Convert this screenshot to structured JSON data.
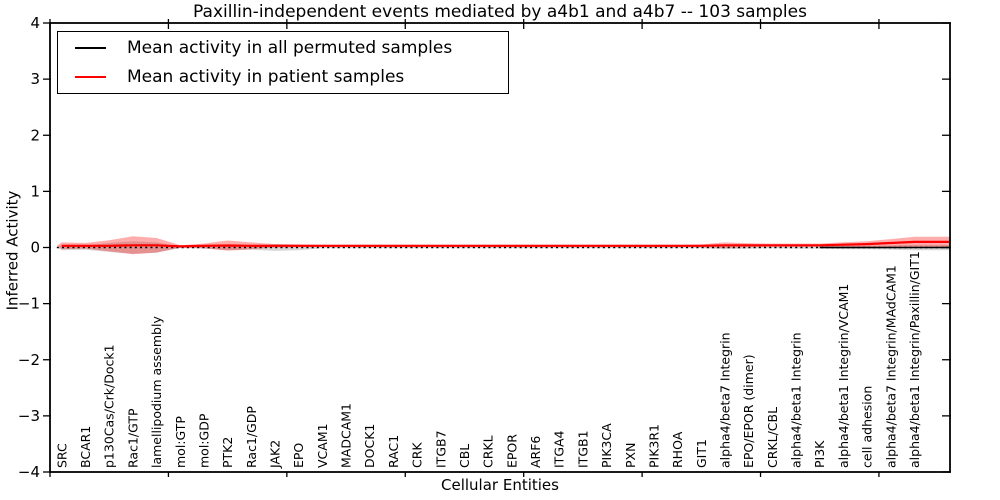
{
  "chart_data": {
    "type": "area",
    "subtype": "violin-band-plot",
    "title": "Paxillin-independent events mediated by a4b1 and a4b7 -- 103 samples",
    "xlabel": "Cellular Entities",
    "ylabel": "Inferred Activity",
    "ylim": [
      -4,
      4
    ],
    "xlim": [
      0,
      38
    ],
    "grid": false,
    "ytick_values": [
      4,
      3,
      2,
      1,
      0,
      -1,
      -2,
      -3,
      -4
    ],
    "ytick_labels": [
      "4",
      "3",
      "2",
      "1",
      "0",
      "−1",
      "−2",
      "−3",
      "−4"
    ],
    "xtick_values": [
      0,
      5,
      10,
      15,
      20,
      25,
      30,
      35
    ],
    "legend": {
      "position": "upper-left",
      "entries": [
        {
          "label": "Mean activity in all permuted samples",
          "color": "#000000",
          "style": "solid"
        },
        {
          "label": "Mean activity in patient samples",
          "color": "#ff0000",
          "style": "solid"
        }
      ]
    },
    "colors": {
      "patient_line": "#ff0000",
      "patient_band": "rgba(255,0,0,0.32)",
      "permuted_line": "#000000",
      "permuted_band": "rgba(0,0,0,0.16)",
      "axis": "#000000"
    },
    "categories": [
      "SRC",
      "BCAR1",
      "p130Cas/Crk/Dock1",
      "Rac1/GTP",
      "lamellipodium assembly",
      "mol:GTP",
      "mol:GDP",
      "PTK2",
      "Rac1/GDP",
      "JAK2",
      "EPO",
      "VCAM1",
      "MADCAM1",
      "DOCK1",
      "RAC1",
      "CRK",
      "ITGB7",
      "CBL",
      "CRKL",
      "EPOR",
      "ARF6",
      "ITGA4",
      "ITGB1",
      "PIK3CA",
      "PXN",
      "PIK3R1",
      "RHOA",
      "GIT1",
      "alpha4/beta7 Integrin",
      "EPO/EPOR (dimer)",
      "CRKL/CBL",
      "alpha4/beta1 Integrin",
      "PI3K",
      "alpha4/beta1 Integrin/VCAM1",
      "cell adhesion",
      "alpha4/beta7 Integrin/MAdCAM1",
      "alpha4/beta1 Integrin/Paxillin/GIT1"
    ],
    "series": [
      {
        "name": "Mean activity in all permuted samples",
        "type": "line",
        "style": "dotted",
        "color": "#000000",
        "values": [
          0,
          0,
          0,
          0,
          0,
          0,
          0,
          0,
          0,
          0,
          0,
          0,
          0,
          0,
          0,
          0,
          0,
          0,
          0,
          0,
          0,
          0,
          0,
          0,
          0,
          0,
          0,
          0,
          0,
          0,
          0,
          0,
          0,
          0,
          0,
          0,
          0
        ]
      },
      {
        "name": "Mean activity in patient samples",
        "type": "line",
        "style": "solid",
        "color": "#ff0000",
        "values": [
          0.03,
          0.03,
          0.03,
          0.04,
          0.04,
          0.02,
          0.03,
          0.035,
          0.03,
          0.03,
          0.03,
          0.03,
          0.03,
          0.03,
          0.03,
          0.03,
          0.03,
          0.03,
          0.03,
          0.03,
          0.03,
          0.03,
          0.03,
          0.03,
          0.03,
          0.03,
          0.03,
          0.03,
          0.04,
          0.04,
          0.04,
          0.04,
          0.04,
          0.05,
          0.06,
          0.08,
          0.1
        ]
      },
      {
        "name": "Permuted samples activity spread",
        "type": "band",
        "center": [
          0,
          0,
          0,
          0,
          0,
          0,
          0,
          0,
          0,
          0,
          0,
          0,
          0,
          0,
          0,
          0,
          0,
          0,
          0,
          0,
          0,
          0,
          0,
          0,
          0,
          0,
          0,
          0,
          0,
          0,
          0,
          0,
          0,
          0,
          0,
          0,
          0
        ],
        "halfwidth": [
          0.05,
          0.04,
          0.08,
          0.11,
          0.09,
          0.01,
          0.02,
          0.05,
          0.04,
          0.06,
          0.05,
          0.015,
          0.012,
          0.012,
          0.012,
          0.012,
          0.012,
          0.012,
          0.012,
          0.012,
          0.012,
          0.012,
          0.012,
          0.012,
          0.012,
          0.012,
          0.012,
          0.012,
          0.03,
          0.02,
          0.015,
          0.02,
          0.02,
          0.03,
          0.03,
          0.04,
          0.05
        ]
      },
      {
        "name": "Patient samples activity spread",
        "type": "band",
        "center": [
          0.03,
          0.03,
          0.03,
          0.04,
          0.04,
          0.02,
          0.03,
          0.035,
          0.03,
          0.03,
          0.03,
          0.03,
          0.03,
          0.03,
          0.03,
          0.03,
          0.03,
          0.03,
          0.03,
          0.03,
          0.03,
          0.03,
          0.03,
          0.03,
          0.03,
          0.03,
          0.03,
          0.03,
          0.04,
          0.04,
          0.04,
          0.04,
          0.04,
          0.05,
          0.06,
          0.08,
          0.1
        ],
        "halfwidth": [
          0.06,
          0.05,
          0.1,
          0.16,
          0.13,
          0.02,
          0.04,
          0.09,
          0.06,
          0.03,
          0.025,
          0.02,
          0.02,
          0.02,
          0.02,
          0.02,
          0.02,
          0.02,
          0.02,
          0.02,
          0.02,
          0.02,
          0.02,
          0.02,
          0.02,
          0.02,
          0.02,
          0.025,
          0.05,
          0.035,
          0.03,
          0.03,
          0.03,
          0.045,
          0.05,
          0.07,
          0.09
        ]
      }
    ],
    "permuted_solid_segment": {
      "start_category": 32,
      "value": 0
    }
  }
}
